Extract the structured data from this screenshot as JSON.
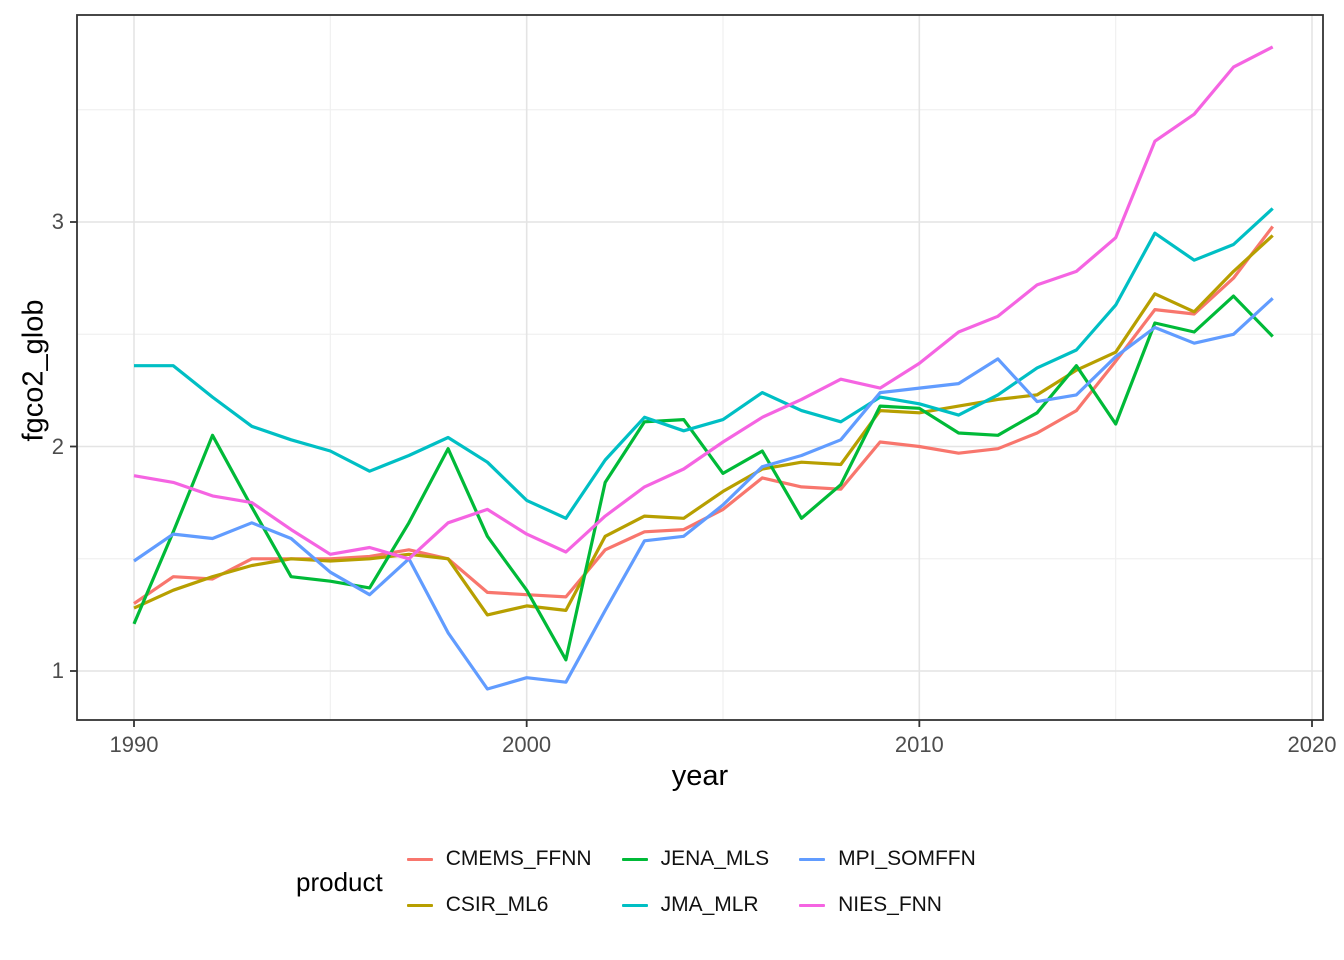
{
  "chart_data": {
    "type": "line",
    "title": "",
    "xlabel": "year",
    "ylabel": "fgco2_glob",
    "legend_title": "product",
    "legend_position": "bottom",
    "grid": "on",
    "xlim": [
      1988.5,
      2020.3
    ],
    "ylim": [
      0.78,
      3.92
    ],
    "x_ticks": [
      {
        "value": 1990,
        "label": "1990"
      },
      {
        "value": 2000,
        "label": "2000"
      },
      {
        "value": 2010,
        "label": "2010"
      },
      {
        "value": 2020,
        "label": "2020"
      }
    ],
    "y_ticks": [
      {
        "value": 1,
        "label": "1"
      },
      {
        "value": 2,
        "label": "2"
      },
      {
        "value": 3,
        "label": "3"
      }
    ],
    "x_minor": [
      1995,
      2005,
      2015
    ],
    "y_minor": [
      1.5,
      2.5,
      3.5
    ],
    "x": [
      1990,
      1991,
      1992,
      1993,
      1994,
      1995,
      1996,
      1997,
      1998,
      1999,
      2000,
      2001,
      2002,
      2003,
      2004,
      2005,
      2006,
      2007,
      2008,
      2009,
      2010,
      2011,
      2012,
      2013,
      2014,
      2015,
      2016,
      2017,
      2018,
      2019
    ],
    "series": [
      {
        "name": "CMEMS_FFNN",
        "color": "#F8766D",
        "values": [
          1.3,
          1.42,
          1.41,
          1.5,
          1.5,
          1.5,
          1.51,
          1.54,
          1.5,
          1.35,
          1.34,
          1.33,
          1.54,
          1.62,
          1.63,
          1.72,
          1.86,
          1.82,
          1.81,
          2.02,
          2.0,
          1.97,
          1.99,
          2.06,
          2.16,
          2.38,
          2.61,
          2.59,
          2.75,
          2.98
        ]
      },
      {
        "name": "CSIR_ML6",
        "color": "#B79F00",
        "values": [
          1.28,
          1.36,
          1.42,
          1.47,
          1.5,
          1.49,
          1.5,
          1.52,
          1.5,
          1.25,
          1.29,
          1.27,
          1.6,
          1.69,
          1.68,
          1.8,
          1.9,
          1.93,
          1.92,
          2.16,
          2.15,
          2.18,
          2.21,
          2.23,
          2.34,
          2.42,
          2.68,
          2.6,
          2.78,
          2.94
        ]
      },
      {
        "name": "JENA_MLS",
        "color": "#00BA38",
        "values": [
          1.21,
          1.62,
          2.05,
          1.73,
          1.42,
          1.4,
          1.37,
          1.66,
          1.99,
          1.6,
          1.36,
          1.05,
          1.84,
          2.11,
          2.12,
          1.88,
          1.98,
          1.68,
          1.83,
          2.18,
          2.17,
          2.06,
          2.05,
          2.15,
          2.36,
          2.1,
          2.55,
          2.51,
          2.67,
          2.49
        ]
      },
      {
        "name": "JMA_MLR",
        "color": "#00BFC4",
        "values": [
          2.36,
          2.36,
          2.22,
          2.09,
          2.03,
          1.98,
          1.89,
          1.96,
          2.04,
          1.93,
          1.76,
          1.68,
          1.94,
          2.13,
          2.07,
          2.12,
          2.24,
          2.16,
          2.11,
          2.22,
          2.19,
          2.14,
          2.23,
          2.35,
          2.43,
          2.63,
          2.95,
          2.83,
          2.9,
          3.06
        ]
      },
      {
        "name": "MPI_SOMFFN",
        "color": "#619CFF",
        "values": [
          1.49,
          1.61,
          1.59,
          1.66,
          1.59,
          1.44,
          1.34,
          1.5,
          1.17,
          0.92,
          0.97,
          0.95,
          1.27,
          1.58,
          1.6,
          1.74,
          1.91,
          1.96,
          2.03,
          2.24,
          2.26,
          2.28,
          2.39,
          2.2,
          2.23,
          2.4,
          2.53,
          2.46,
          2.5,
          2.66
        ]
      },
      {
        "name": "NIES_FNN",
        "color": "#F564E2",
        "values": [
          1.87,
          1.84,
          1.78,
          1.75,
          1.63,
          1.52,
          1.55,
          1.5,
          1.66,
          1.72,
          1.61,
          1.53,
          1.69,
          1.82,
          1.9,
          2.02,
          2.13,
          2.21,
          2.3,
          2.26,
          2.37,
          2.51,
          2.58,
          2.72,
          2.78,
          2.93,
          3.36,
          3.48,
          3.69,
          3.78
        ]
      }
    ],
    "panel": {
      "background": "#ffffff",
      "border_color": "#333333",
      "major_grid_color": "#e4e4e4",
      "minor_grid_color": "#f0f0f0",
      "tick_color": "#333333"
    }
  }
}
